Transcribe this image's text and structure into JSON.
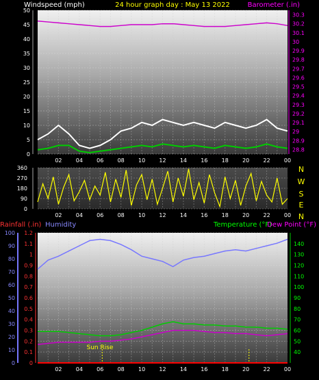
{
  "header": {
    "left_label": "Windspeed (mph)",
    "title": "24 hour graph day : May 13 2022",
    "right_label": "Barometer (.in)"
  },
  "mid": {
    "dir_letters": [
      "N",
      "W",
      "S",
      "E",
      "N"
    ]
  },
  "bottom": {
    "rain_label": "Rainfall (.in)",
    "hum_label": "Humidity",
    "temp_label": "Temperature (°F)",
    "dew_label": "Dew Point (°F)",
    "sunrise_label": "Sun Rise"
  },
  "colors": {
    "wind_avg": "#00cc00",
    "wind_gust": "#ffffff",
    "wind_lull": "#000000",
    "barometer": "#cc00cc",
    "direction": "#ffff00",
    "humidity": "#7777ff",
    "temperature": "#00cc00",
    "dewpoint": "#cc00cc",
    "rain": "#ff0000"
  },
  "chart_data": [
    {
      "type": "line",
      "panel": "wind-barometer",
      "x_ticks": [
        "02",
        "04",
        "06",
        "08",
        "10",
        "12",
        "14",
        "16",
        "18",
        "20",
        "22",
        "00"
      ],
      "y_left_ticks": [
        0,
        5,
        10,
        15,
        20,
        25,
        30,
        35,
        40,
        45,
        50
      ],
      "y_left_lim": [
        0,
        50
      ],
      "y_right_ticks": [
        "28.8",
        "28.9",
        "29",
        "29.1",
        "29.2",
        "29.3",
        "29.4",
        "29.5",
        "29.6",
        "29.7",
        "29.8",
        "29.9",
        "30",
        "30.1",
        "30.2",
        "30.3"
      ],
      "y_right_lim": [
        28.75,
        30.35
      ],
      "grid": true,
      "barometer": {
        "x": [
          0,
          1,
          2,
          3,
          4,
          5,
          6,
          7,
          8,
          9,
          10,
          11,
          12,
          13,
          14,
          15,
          16,
          17,
          18,
          19,
          20,
          21,
          22,
          23,
          24
        ],
        "y": [
          30.23,
          30.22,
          30.21,
          30.2,
          30.19,
          30.18,
          30.17,
          30.17,
          30.18,
          30.19,
          30.19,
          30.19,
          30.2,
          30.2,
          30.19,
          30.18,
          30.17,
          30.17,
          30.17,
          30.18,
          30.19,
          30.2,
          30.21,
          30.2,
          30.18
        ]
      },
      "wind_gust": {
        "x": [
          0,
          1,
          2,
          3,
          4,
          5,
          6,
          7,
          8,
          9,
          10,
          11,
          12,
          13,
          14,
          15,
          16,
          17,
          18,
          19,
          20,
          21,
          22,
          23,
          24
        ],
        "y": [
          5,
          7,
          10,
          7,
          3,
          2,
          3,
          5,
          8,
          9,
          11,
          10,
          12,
          11,
          10,
          11,
          10,
          9,
          11,
          10,
          9,
          10,
          12,
          9,
          8
        ]
      },
      "wind_avg": {
        "x": [
          0,
          1,
          2,
          3,
          4,
          5,
          6,
          7,
          8,
          9,
          10,
          11,
          12,
          13,
          14,
          15,
          16,
          17,
          18,
          19,
          20,
          21,
          22,
          23,
          24
        ],
        "y": [
          1.5,
          2,
          3,
          3,
          1,
          0.5,
          1,
          1.5,
          2,
          2.5,
          3,
          2.5,
          3.5,
          3,
          2.5,
          3,
          2.5,
          2,
          3,
          2.5,
          2,
          2.5,
          3.5,
          2.5,
          2
        ]
      }
    },
    {
      "type": "line",
      "panel": "wind-direction",
      "x_ticks": [
        "02",
        "04",
        "06",
        "08",
        "10",
        "12",
        "14",
        "16",
        "18",
        "20",
        "22",
        "00"
      ],
      "y_left_ticks": [
        0,
        90,
        180,
        270,
        360
      ],
      "y_lim": [
        0,
        360
      ],
      "grid": true,
      "series": [
        {
          "name": "",
          "x": [
            0,
            0.5,
            1,
            1.5,
            2,
            2.5,
            3,
            3.5,
            4,
            4.5,
            5,
            5.5,
            6,
            6.5,
            7,
            7.5,
            8,
            8.5,
            9,
            9.5,
            10,
            10.5,
            11,
            11.5,
            12,
            12.5,
            13,
            13.5,
            14,
            14.5,
            15,
            15.5,
            16,
            16.5,
            17,
            17.5,
            18,
            18.5,
            19,
            19.5,
            20,
            20.5,
            21,
            21.5,
            22,
            22.5,
            23,
            23.5,
            24
          ],
          "y": [
            60,
            220,
            90,
            280,
            40,
            190,
            300,
            70,
            150,
            250,
            80,
            200,
            120,
            320,
            60,
            260,
            100,
            340,
            30,
            210,
            300,
            80,
            260,
            40,
            180,
            330,
            60,
            270,
            110,
            350,
            80,
            230,
            50,
            300,
            140,
            20,
            280,
            90,
            250,
            30,
            200,
            310,
            70,
            240,
            120,
            60,
            270,
            40,
            90
          ]
        }
      ]
    },
    {
      "type": "line",
      "panel": "rain-humidity-temp",
      "x_ticks": [
        "02",
        "04",
        "06",
        "08",
        "10",
        "12",
        "14",
        "16",
        "18",
        "20",
        "22",
        "00"
      ],
      "y_left_ticks": [
        "0",
        "0.1",
        "0.2",
        "0.3",
        "0.4",
        "0.5",
        "0.6",
        "0.7",
        "0.8",
        "0.9",
        "1",
        "1.1",
        "1.2"
      ],
      "y_left_lim": [
        0,
        1.2
      ],
      "y_hum_ticks": [
        0,
        10,
        20,
        30,
        40,
        50,
        60,
        70,
        80,
        90,
        100
      ],
      "y_hum_lim": [
        0,
        100
      ],
      "y_right_ticks": [
        40,
        50,
        60,
        70,
        80,
        90,
        100,
        110,
        120,
        130,
        140
      ],
      "y_right_lim": [
        30,
        150
      ],
      "grid": true,
      "annotation": "Sun Rise",
      "markers_x": [
        6.2,
        20.3
      ],
      "humidity": {
        "x": [
          0,
          1,
          2,
          3,
          4,
          5,
          6,
          7,
          8,
          9,
          10,
          11,
          12,
          13,
          14,
          15,
          16,
          17,
          18,
          19,
          20,
          21,
          22,
          23,
          24
        ],
        "y": [
          72,
          79,
          82,
          86,
          90,
          94,
          95,
          94,
          91,
          87,
          82,
          80,
          78,
          74,
          79,
          81,
          82,
          84,
          86,
          87,
          86,
          88,
          90,
          92,
          95
        ]
      },
      "temperature": {
        "x": [
          0,
          1,
          2,
          3,
          4,
          5,
          6,
          7,
          8,
          9,
          10,
          11,
          12,
          13,
          14,
          15,
          16,
          17,
          18,
          19,
          20,
          21,
          22,
          23,
          24
        ],
        "y": [
          59,
          59,
          59,
          58,
          57,
          56,
          55,
          55,
          56,
          58,
          60,
          63,
          66,
          68,
          66,
          66,
          65,
          65,
          64,
          64,
          63,
          63,
          62,
          62,
          61
        ]
      },
      "dewpoint": {
        "x": [
          0,
          1,
          2,
          3,
          4,
          5,
          6,
          7,
          8,
          9,
          10,
          11,
          12,
          13,
          14,
          15,
          16,
          17,
          18,
          19,
          20,
          21,
          22,
          23,
          24
        ],
        "y": [
          47,
          48,
          49,
          49,
          49,
          49,
          50,
          50,
          51,
          52,
          54,
          56,
          58,
          60,
          60,
          60,
          59,
          58,
          58,
          57,
          57,
          56,
          55,
          56,
          57
        ]
      },
      "rain": {
        "x": [
          0,
          24
        ],
        "y": [
          0,
          0
        ]
      }
    }
  ]
}
